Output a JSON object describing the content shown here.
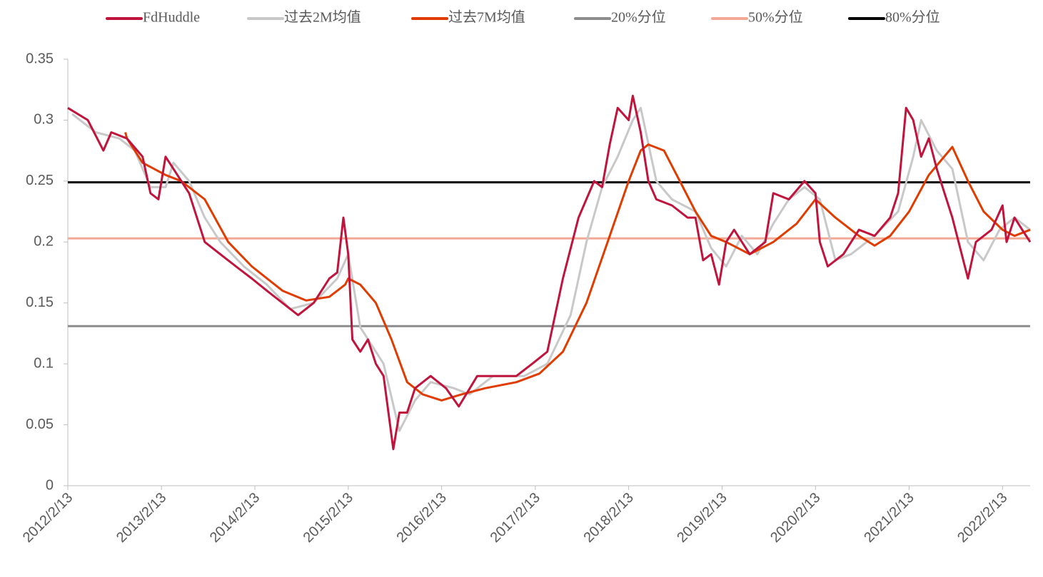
{
  "chart_data": {
    "type": "line",
    "xlim": [
      "2012/2/13",
      "2022/6/1"
    ],
    "xticks": [
      "2012/2/13",
      "2013/2/13",
      "2014/2/13",
      "2015/2/13",
      "2016/2/13",
      "2017/2/13",
      "2018/2/13",
      "2019/2/13",
      "2020/2/13",
      "2021/2/13",
      "2022/2/13"
    ],
    "ylim": [
      0,
      0.35
    ],
    "yticks": [
      0,
      0.05,
      0.1,
      0.15,
      0.2,
      0.25,
      0.3,
      0.35
    ],
    "series": [
      {
        "name": "FdHuddle",
        "color": "#c0143c",
        "x": [
          "2012/2/13",
          "2012/5/1",
          "2012/7/1",
          "2012/8/1",
          "2012/10/1",
          "2012/12/1",
          "2013/1/1",
          "2013/2/1",
          "2013/3/1",
          "2013/4/1",
          "2013/6/1",
          "2013/8/1",
          "2013/10/1",
          "2013/12/1",
          "2014/2/1",
          "2014/4/1",
          "2014/6/1",
          "2014/8/1",
          "2014/10/1",
          "2014/12/1",
          "2015/1/1",
          "2015/1/25",
          "2015/2/13",
          "2015/3/1",
          "2015/4/1",
          "2015/5/1",
          "2015/6/1",
          "2015/7/1",
          "2015/8/8",
          "2015/9/1",
          "2015/10/1",
          "2015/11/1",
          "2016/1/1",
          "2016/3/1",
          "2016/4/20",
          "2016/7/1",
          "2016/9/1",
          "2016/12/1",
          "2017/2/1",
          "2017/4/1",
          "2017/6/1",
          "2017/8/1",
          "2017/10/1",
          "2017/11/1",
          "2017/12/1",
          "2018/1/1",
          "2018/2/13",
          "2018/3/1",
          "2018/4/1",
          "2018/5/1",
          "2018/6/1",
          "2018/8/1",
          "2018/10/1",
          "2018/11/1",
          "2018/12/1",
          "2019/1/1",
          "2019/2/1",
          "2019/3/1",
          "2019/4/1",
          "2019/6/1",
          "2019/8/1",
          "2019/9/1",
          "2019/11/1",
          "2020/1/1",
          "2020/2/13",
          "2020/3/1",
          "2020/4/1",
          "2020/6/1",
          "2020/8/1",
          "2020/10/1",
          "2020/12/1",
          "2021/1/1",
          "2021/2/1",
          "2021/3/1",
          "2021/4/1",
          "2021/5/1",
          "2021/6/1",
          "2021/8/1",
          "2021/10/1",
          "2021/11/1",
          "2022/1/1",
          "2022/2/13",
          "2022/3/1",
          "2022/4/1",
          "2022/5/1",
          "2022/6/1"
        ],
        "values": [
          0.31,
          0.3,
          0.275,
          0.29,
          0.285,
          0.27,
          0.24,
          0.235,
          0.27,
          0.26,
          0.24,
          0.2,
          0.19,
          0.18,
          0.17,
          0.16,
          0.15,
          0.14,
          0.15,
          0.17,
          0.175,
          0.22,
          0.19,
          0.12,
          0.11,
          0.12,
          0.1,
          0.09,
          0.03,
          0.06,
          0.06,
          0.08,
          0.09,
          0.08,
          0.065,
          0.09,
          0.09,
          0.09,
          0.1,
          0.11,
          0.17,
          0.22,
          0.25,
          0.245,
          0.28,
          0.31,
          0.3,
          0.32,
          0.29,
          0.25,
          0.235,
          0.23,
          0.22,
          0.22,
          0.185,
          0.19,
          0.165,
          0.2,
          0.21,
          0.19,
          0.2,
          0.24,
          0.235,
          0.25,
          0.24,
          0.2,
          0.18,
          0.19,
          0.21,
          0.205,
          0.22,
          0.24,
          0.31,
          0.3,
          0.27,
          0.285,
          0.26,
          0.22,
          0.17,
          0.2,
          0.21,
          0.23,
          0.2,
          0.22,
          0.21,
          0.2
        ]
      },
      {
        "name": "过去2M均值",
        "color": "#c8c8c8",
        "x": [
          "2012/3/1",
          "2012/6/1",
          "2012/9/1",
          "2012/11/1",
          "2013/1/1",
          "2013/3/1",
          "2013/4/1",
          "2013/6/1",
          "2013/8/1",
          "2013/10/1",
          "2014/1/1",
          "2014/4/1",
          "2014/7/1",
          "2014/10/1",
          "2015/1/1",
          "2015/2/13",
          "2015/4/1",
          "2015/6/1",
          "2015/7/1",
          "2015/9/1",
          "2015/11/1",
          "2016/1/1",
          "2016/4/1",
          "2016/6/1",
          "2016/9/1",
          "2017/1/1",
          "2017/4/1",
          "2017/7/1",
          "2017/9/1",
          "2017/11/1",
          "2018/1/1",
          "2018/3/1",
          "2018/4/1",
          "2018/6/1",
          "2018/8/1",
          "2018/11/1",
          "2019/1/1",
          "2019/3/1",
          "2019/5/1",
          "2019/7/1",
          "2019/9/1",
          "2019/11/1",
          "2020/1/1",
          "2020/3/1",
          "2020/5/1",
          "2020/7/1",
          "2020/10/1",
          "2021/1/1",
          "2021/3/1",
          "2021/4/1",
          "2021/6/1",
          "2021/8/1",
          "2021/10/1",
          "2021/12/1",
          "2022/2/1",
          "2022/4/1",
          "2022/6/1"
        ],
        "values": [
          0.305,
          0.29,
          0.285,
          0.275,
          0.245,
          0.245,
          0.265,
          0.25,
          0.22,
          0.2,
          0.18,
          0.165,
          0.145,
          0.15,
          0.17,
          0.19,
          0.13,
          0.11,
          0.1,
          0.045,
          0.07,
          0.085,
          0.08,
          0.075,
          0.09,
          0.09,
          0.1,
          0.14,
          0.2,
          0.245,
          0.27,
          0.3,
          0.31,
          0.25,
          0.235,
          0.225,
          0.195,
          0.18,
          0.205,
          0.19,
          0.215,
          0.235,
          0.245,
          0.235,
          0.185,
          0.19,
          0.205,
          0.225,
          0.27,
          0.3,
          0.275,
          0.26,
          0.2,
          0.185,
          0.21,
          0.22,
          0.21
        ]
      },
      {
        "name": "过去7M均值",
        "color": "#e03c00",
        "x": [
          "2012/9/25",
          "2012/10/1",
          "2012/12/1",
          "2013/3/1",
          "2013/5/1",
          "2013/8/1",
          "2013/11/1",
          "2014/2/1",
          "2014/6/1",
          "2014/9/1",
          "2014/12/1",
          "2015/2/1",
          "2015/2/13",
          "2015/4/1",
          "2015/6/1",
          "2015/8/1",
          "2015/10/1",
          "2015/12/1",
          "2016/2/13",
          "2016/5/1",
          "2016/8/1",
          "2016/12/1",
          "2017/3/1",
          "2017/6/1",
          "2017/9/1",
          "2017/12/1",
          "2018/2/13",
          "2018/4/1",
          "2018/5/1",
          "2018/7/1",
          "2018/9/1",
          "2018/11/1",
          "2019/1/1",
          "2019/3/1",
          "2019/6/1",
          "2019/9/1",
          "2019/12/1",
          "2020/2/13",
          "2020/5/1",
          "2020/8/1",
          "2020/10/1",
          "2020/12/1",
          "2021/2/13",
          "2021/5/1",
          "2021/8/1",
          "2021/10/1",
          "2021/12/1",
          "2022/2/13",
          "2022/4/1",
          "2022/6/1"
        ],
        "values": [
          0.29,
          0.285,
          0.265,
          0.255,
          0.25,
          0.235,
          0.2,
          0.18,
          0.16,
          0.152,
          0.155,
          0.165,
          0.17,
          0.165,
          0.15,
          0.12,
          0.085,
          0.075,
          0.07,
          0.075,
          0.08,
          0.085,
          0.092,
          0.11,
          0.15,
          0.205,
          0.25,
          0.275,
          0.28,
          0.275,
          0.25,
          0.225,
          0.205,
          0.2,
          0.19,
          0.2,
          0.215,
          0.235,
          0.22,
          0.205,
          0.197,
          0.205,
          0.225,
          0.255,
          0.278,
          0.25,
          0.225,
          0.21,
          0.205,
          0.21
        ]
      },
      {
        "name": "20%分位",
        "color": "#8c8c8c",
        "x": [
          "2012/2/13",
          "2022/6/1"
        ],
        "values": [
          0.131,
          0.131
        ]
      },
      {
        "name": "50%分位",
        "color": "#f4a896",
        "x": [
          "2012/2/13",
          "2022/6/1"
        ],
        "values": [
          0.203,
          0.203
        ]
      },
      {
        "name": "80%分位",
        "color": "#000000",
        "x": [
          "2012/2/13",
          "2022/6/1"
        ],
        "values": [
          0.249,
          0.249
        ]
      }
    ]
  }
}
